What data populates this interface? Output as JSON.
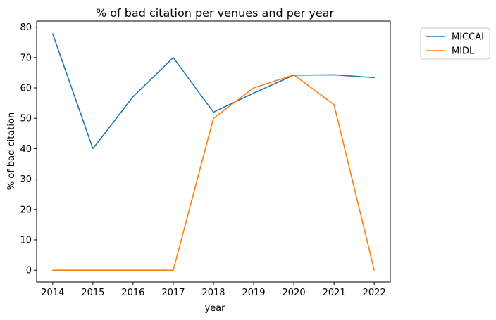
{
  "chart_data": {
    "type": "line",
    "title": "% of bad citation per venues and per year",
    "xlabel": "year",
    "ylabel": "% of bad citation",
    "x": [
      2014,
      2015,
      2016,
      2017,
      2018,
      2019,
      2020,
      2021,
      2022
    ],
    "x_ticks": [
      "2014",
      "2015",
      "2016",
      "2017",
      "2018",
      "2019",
      "2020",
      "2021",
      "2022"
    ],
    "y_ticks": [
      "0",
      "10",
      "20",
      "30",
      "40",
      "50",
      "60",
      "70",
      "80"
    ],
    "xlim": [
      2013.6,
      2022.4
    ],
    "ylim": [
      -3.9,
      82
    ],
    "grid": false,
    "legend_position": "outside-top-right",
    "series": [
      {
        "name": "MICCAI",
        "color": "#1f77b4",
        "values": [
          77.8,
          40.0,
          57.1,
          70.0,
          52.0,
          58.3,
          64.2,
          64.3,
          63.4
        ]
      },
      {
        "name": "MIDL",
        "color": "#ff7f0e",
        "values": [
          0,
          0,
          0,
          0,
          50.0,
          60.0,
          64.3,
          54.5,
          0
        ]
      }
    ]
  }
}
